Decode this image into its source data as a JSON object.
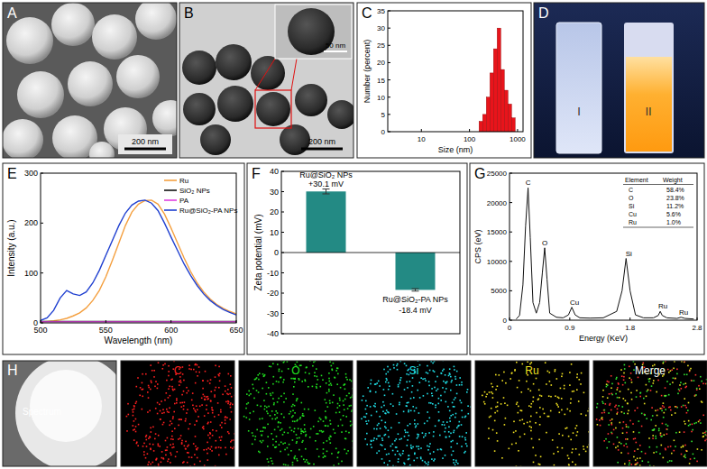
{
  "images": [
    {
      "panel": "A",
      "scale_bar": "200 nm"
    },
    {
      "panel": "B",
      "scale_bar": "200 nm",
      "inset_scale_bar": "50 nm"
    },
    {
      "panel": "D",
      "samples": [
        "I",
        "II"
      ]
    },
    {
      "panel": "H",
      "tiles": [
        "Spectrum",
        "C",
        "O",
        "Si",
        "Ru",
        "Merge"
      ]
    }
  ],
  "chart_data": [
    {
      "panel": "C",
      "type": "histogram",
      "x_label": "Size (nm)",
      "y_label": "Number (percent)",
      "bins": [
        158,
        188,
        224,
        266,
        316,
        376,
        447,
        531,
        631,
        750,
        891
      ],
      "values": [
        3,
        5,
        10,
        17,
        24,
        30,
        18,
        12,
        8,
        4
      ],
      "color": "#e8141b",
      "log": "x",
      "xlim": [
        2,
        1300
      ],
      "xticks": [
        10,
        100,
        1000
      ],
      "ylim": [
        0,
        35
      ],
      "yticks": [
        0,
        5,
        10,
        15,
        20,
        25,
        30,
        35
      ]
    },
    {
      "panel": "E",
      "type": "line",
      "x_label": "Wavelength (nm)",
      "y_label": "Intensity (a.u.)",
      "x": [
        500,
        505,
        510,
        515,
        520,
        525,
        530,
        535,
        540,
        545,
        550,
        555,
        560,
        565,
        570,
        575,
        580,
        585,
        590,
        595,
        600,
        605,
        610,
        615,
        620,
        625,
        630,
        635,
        640,
        645,
        650
      ],
      "series": [
        {
          "name": "Ru",
          "color": "#f4a040",
          "values": [
            2,
            3,
            4,
            6,
            9,
            14,
            20,
            30,
            45,
            65,
            92,
            125,
            160,
            195,
            222,
            238,
            245,
            246,
            238,
            218,
            190,
            160,
            130,
            103,
            80,
            62,
            48,
            37,
            29,
            23,
            18
          ]
        },
        {
          "name": "SiO₂ NPs",
          "color": "#111111",
          "values": [
            3,
            3,
            3,
            3,
            3,
            3,
            3,
            3,
            3,
            3,
            3,
            3,
            3,
            3,
            3,
            3,
            3,
            3,
            3,
            3,
            3,
            3,
            3,
            3,
            3,
            3,
            3,
            3,
            3,
            3,
            3
          ]
        },
        {
          "name": "PA",
          "color": "#e040e0",
          "values": [
            2,
            2,
            2,
            2,
            2,
            2,
            2,
            2,
            2,
            2,
            2,
            2,
            2,
            2,
            2,
            2,
            2,
            2,
            2,
            2,
            2,
            2,
            2,
            2,
            2,
            2,
            2,
            2,
            2,
            2,
            2
          ]
        },
        {
          "name": "Ru@SiO₂-PA NPs",
          "color": "#2040d0",
          "values": [
            5,
            10,
            25,
            50,
            65,
            58,
            55,
            62,
            80,
            105,
            135,
            165,
            195,
            220,
            236,
            244,
            246,
            240,
            225,
            200,
            172,
            145,
            118,
            95,
            75,
            58,
            45,
            35,
            27,
            21,
            16
          ]
        }
      ],
      "legend": "upper right",
      "xlim": [
        500,
        650
      ],
      "xticks": [
        500,
        550,
        600,
        650
      ],
      "ylim": [
        0,
        300
      ],
      "yticks": [
        0,
        100,
        200,
        300
      ]
    },
    {
      "panel": "F",
      "type": "bar",
      "y_label": "Zeta potential (mV)",
      "categories": [
        "Ru@SiO₂ NPs",
        "Ru@SiO₂-PA NPs"
      ],
      "values": [
        30.1,
        -18.4
      ],
      "value_labels": [
        "+30.1 mV",
        "-18.4 mV"
      ],
      "errors": [
        1.2,
        0.6
      ],
      "color": "#238a84",
      "data_labels": true,
      "ylim": [
        -40,
        40
      ],
      "yticks": [
        -40,
        -30,
        -20,
        -10,
        0,
        10,
        20,
        30,
        40
      ]
    },
    {
      "panel": "G",
      "type": "line",
      "x_label": "Energy (KeV)",
      "y_label": "CPS (eV)",
      "x": [
        0.1,
        0.15,
        0.2,
        0.24,
        0.277,
        0.31,
        0.35,
        0.4,
        0.45,
        0.49,
        0.525,
        0.56,
        0.6,
        0.7,
        0.8,
        0.88,
        0.93,
        0.98,
        1.05,
        1.2,
        1.4,
        1.6,
        1.68,
        1.74,
        1.8,
        1.88,
        2.0,
        2.15,
        2.22,
        2.25,
        2.28,
        2.35,
        2.5,
        2.56,
        2.62,
        2.75
      ],
      "values": [
        200,
        800,
        6000,
        16000,
        22500,
        14000,
        3000,
        1200,
        3000,
        8000,
        12300,
        7000,
        1200,
        500,
        400,
        900,
        2200,
        900,
        400,
        350,
        400,
        1500,
        5000,
        10500,
        5000,
        900,
        400,
        400,
        800,
        1500,
        800,
        400,
        300,
        500,
        300,
        200
      ],
      "color": "#111111",
      "annotations": [
        {
          "text": "C",
          "x": 0.277,
          "y": 22500
        },
        {
          "text": "O",
          "x": 0.525,
          "y": 12300
        },
        {
          "text": "Cu",
          "x": 0.93,
          "y": 2200
        },
        {
          "text": "Si",
          "x": 1.74,
          "y": 10500
        },
        {
          "text": "Ru",
          "x": 2.25,
          "y": 1500
        },
        {
          "text": "Ru",
          "x": 2.56,
          "y": 500
        }
      ],
      "table": {
        "header": [
          "Element",
          "Weight"
        ],
        "rows": [
          [
            "C",
            "58.4%"
          ],
          [
            "O",
            "23.8%"
          ],
          [
            "Si",
            "11.2%"
          ],
          [
            "Cu",
            "5.6%"
          ],
          [
            "Ru",
            "1.0%"
          ]
        ]
      },
      "xlim": [
        0,
        2.8
      ],
      "xticks": [
        0,
        0.9,
        1.8,
        2.8
      ],
      "ylim": [
        0,
        25000
      ],
      "yticks": [
        0,
        5000,
        10000,
        15000,
        20000,
        25000
      ]
    }
  ]
}
